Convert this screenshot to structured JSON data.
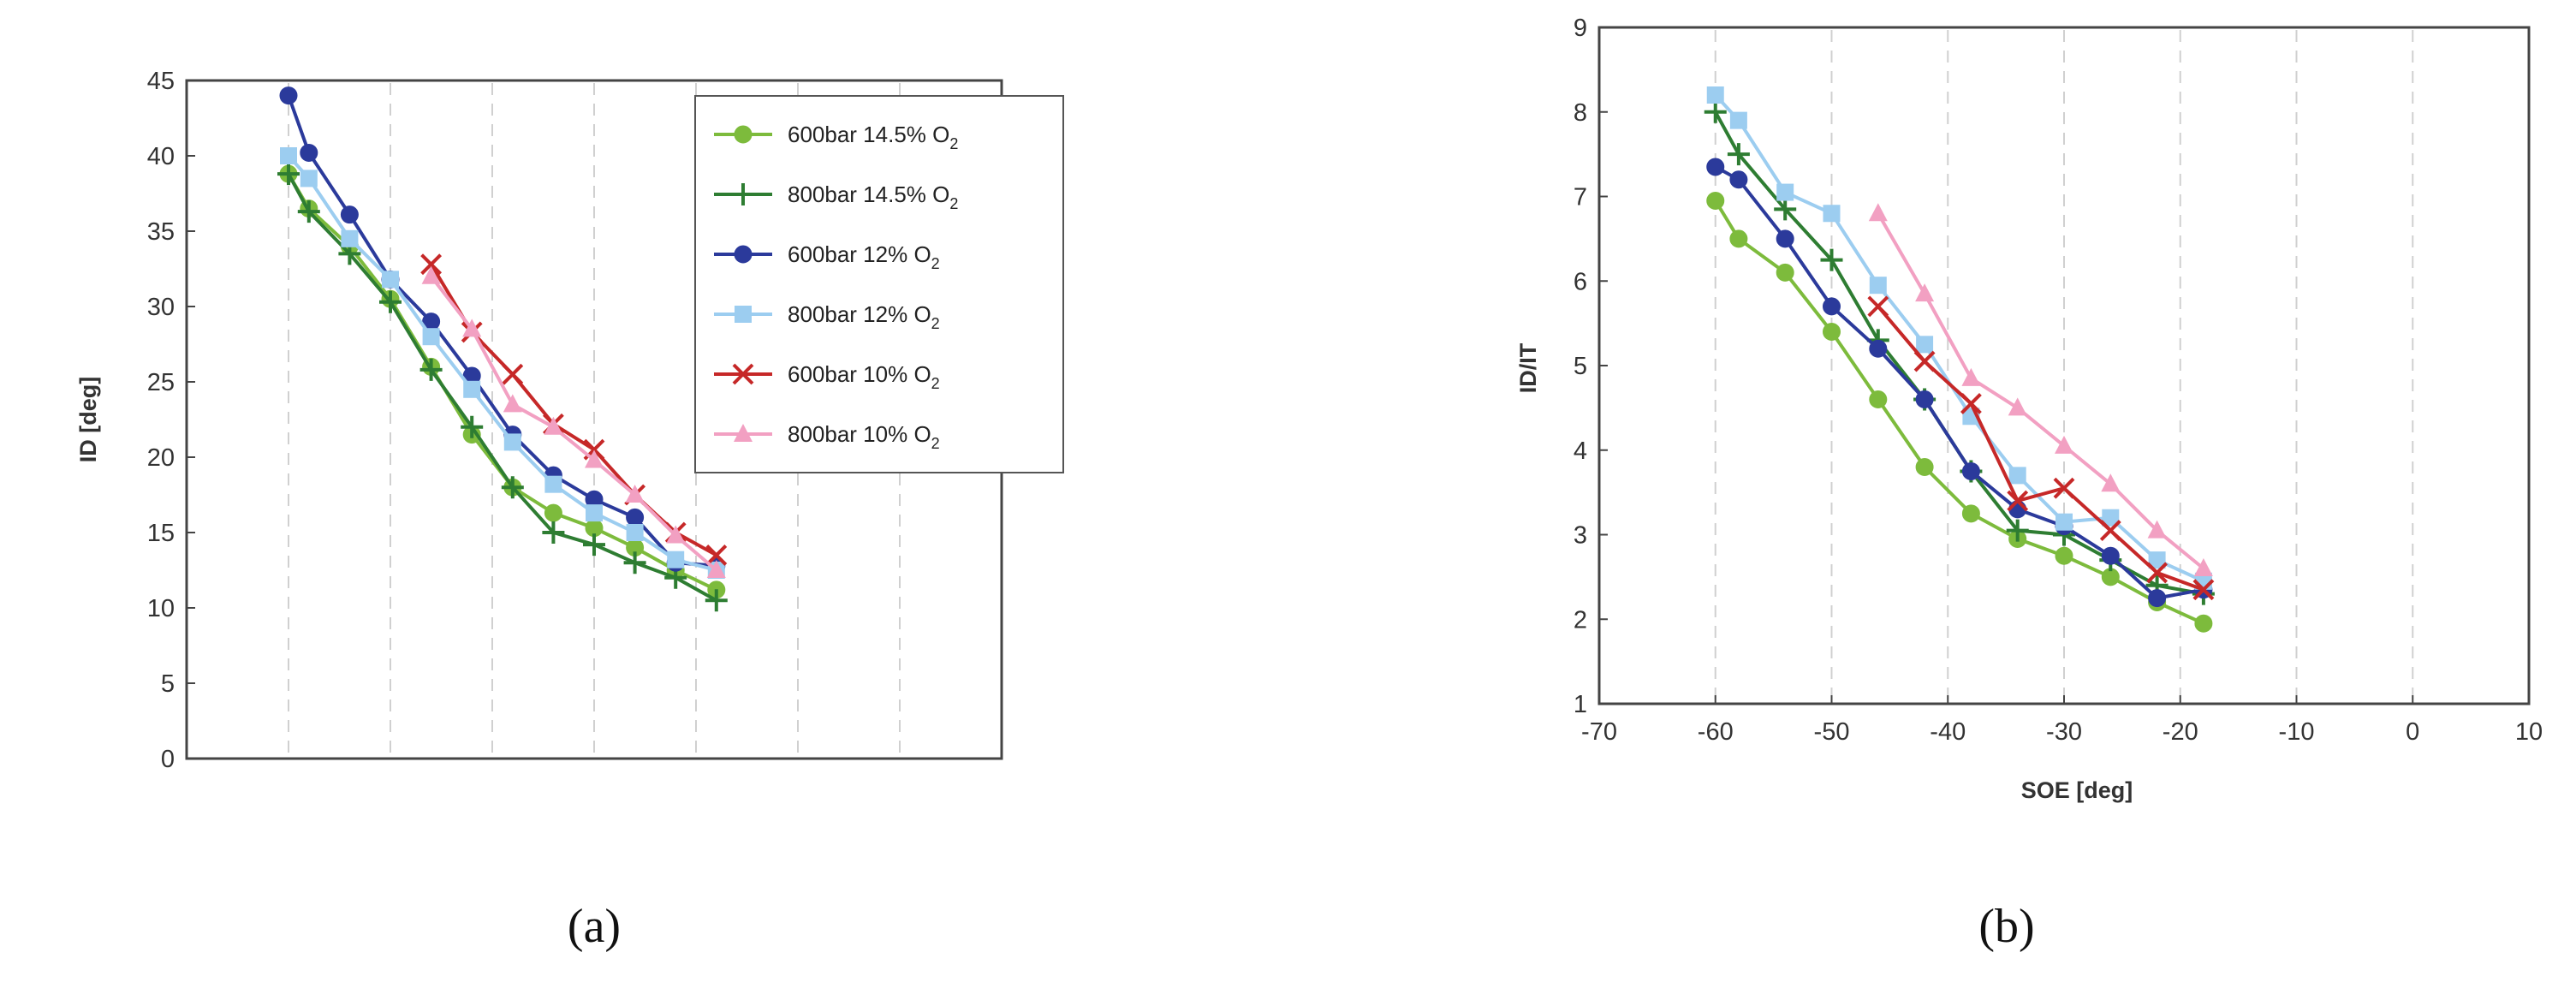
{
  "chart_data": [
    {
      "type": "line",
      "caption": "(a)",
      "ylabel": "ID [deg]",
      "xlabel": "",
      "xlim": [
        -70,
        10
      ],
      "ylim": [
        0,
        45
      ],
      "yticks": [
        "0",
        "5",
        "10",
        "15",
        "20",
        "25",
        "30",
        "35",
        "40",
        "45"
      ],
      "grid": "vertical-dashed",
      "legend_position": "top-right",
      "series": [
        {
          "name": "600bar 14.5% O",
          "name_sub": "2",
          "color": "#7dbb3c",
          "marker": "circle",
          "x": [
            -60,
            -58,
            -54,
            -50,
            -46,
            -42,
            -38,
            -34,
            -30,
            -26,
            -22,
            -18
          ],
          "y": [
            38.8,
            36.5,
            34.0,
            30.5,
            26.0,
            21.5,
            18.0,
            16.3,
            15.3,
            14.0,
            12.5,
            11.2
          ]
        },
        {
          "name": "800bar 14.5% O",
          "name_sub": "2",
          "color": "#2e7d32",
          "marker": "plus",
          "x": [
            -60,
            -58,
            -54,
            -50,
            -46,
            -42,
            -38,
            -34,
            -30,
            -26,
            -22,
            -18
          ],
          "y": [
            38.8,
            36.3,
            33.5,
            30.3,
            25.8,
            22.0,
            18.0,
            15.0,
            14.2,
            13.0,
            12.0,
            10.5
          ]
        },
        {
          "name": "600bar 12% O",
          "name_sub": "2",
          "color": "#2b3a9b",
          "marker": "circle",
          "x": [
            -60,
            -58,
            -54,
            -50,
            -46,
            -42,
            -38,
            -34,
            -30,
            -26,
            -22,
            -18
          ],
          "y": [
            44.0,
            40.2,
            36.1,
            31.8,
            29.0,
            25.4,
            21.5,
            18.8,
            17.2,
            16.0,
            13.0,
            12.8
          ]
        },
        {
          "name": "800bar 12% O",
          "name_sub": "2",
          "color": "#9ccdf0",
          "marker": "square",
          "x": [
            -60,
            -58,
            -54,
            -50,
            -46,
            -42,
            -38,
            -34,
            -30,
            -26,
            -22,
            -18
          ],
          "y": [
            40.0,
            38.5,
            34.5,
            31.8,
            28.0,
            24.5,
            21.0,
            18.2,
            16.3,
            15.0,
            13.2,
            12.5
          ]
        },
        {
          "name": "600bar 10% O",
          "name_sub": "2",
          "color": "#c62828",
          "marker": "x",
          "x": [
            -46,
            -42,
            -38,
            -34,
            -30,
            -26,
            -22,
            -18
          ],
          "y": [
            32.8,
            28.3,
            25.5,
            22.2,
            20.5,
            17.5,
            15.0,
            13.5
          ]
        },
        {
          "name": "800bar 10% O",
          "name_sub": "2",
          "color": "#f2a0c2",
          "marker": "triangle",
          "x": [
            -46,
            -42,
            -38,
            -34,
            -30,
            -26,
            -22,
            -18
          ],
          "y": [
            32.0,
            28.5,
            23.5,
            22.0,
            19.8,
            17.5,
            14.8,
            12.5
          ]
        }
      ]
    },
    {
      "type": "line",
      "caption": "(b)",
      "ylabel": "ID/IT",
      "xlabel": "SOE [deg]",
      "xlim": [
        -70,
        10
      ],
      "ylim": [
        1,
        9
      ],
      "xticks": [
        "-70",
        "-60",
        "-50",
        "-40",
        "-30",
        "-20",
        "-10",
        "0",
        "10"
      ],
      "yticks": [
        "1",
        "2",
        "3",
        "4",
        "5",
        "6",
        "7",
        "8",
        "9"
      ],
      "grid": "vertical-dashed",
      "series": [
        {
          "color": "#7dbb3c",
          "marker": "circle",
          "x": [
            -60,
            -58,
            -54,
            -50,
            -46,
            -42,
            -38,
            -34,
            -30,
            -26,
            -22,
            -18
          ],
          "y": [
            6.95,
            6.5,
            6.1,
            5.4,
            4.6,
            3.8,
            3.25,
            2.95,
            2.75,
            2.5,
            2.2,
            1.95
          ]
        },
        {
          "color": "#2e7d32",
          "marker": "plus",
          "x": [
            -60,
            -58,
            -54,
            -50,
            -46,
            -42,
            -38,
            -34,
            -30,
            -26,
            -22,
            -18
          ],
          "y": [
            8.0,
            7.5,
            6.85,
            6.25,
            5.3,
            4.6,
            3.75,
            3.05,
            3.0,
            2.7,
            2.4,
            2.3
          ]
        },
        {
          "color": "#2b3a9b",
          "marker": "circle",
          "x": [
            -60,
            -58,
            -54,
            -50,
            -46,
            -42,
            -38,
            -34,
            -30,
            -26,
            -22,
            -18
          ],
          "y": [
            7.35,
            7.2,
            6.5,
            5.7,
            5.2,
            4.6,
            3.75,
            3.3,
            3.1,
            2.75,
            2.25,
            2.35
          ]
        },
        {
          "color": "#9ccdf0",
          "marker": "square",
          "x": [
            -60,
            -58,
            -54,
            -50,
            -46,
            -42,
            -38,
            -34,
            -30,
            -26,
            -22,
            -18
          ],
          "y": [
            8.2,
            7.9,
            7.05,
            6.8,
            5.95,
            5.25,
            4.4,
            3.7,
            3.15,
            3.2,
            2.7,
            2.45
          ]
        },
        {
          "color": "#c62828",
          "marker": "x",
          "x": [
            -46,
            -42,
            -38,
            -34,
            -30,
            -26,
            -22,
            -18
          ],
          "y": [
            5.7,
            5.05,
            4.55,
            3.4,
            3.55,
            3.05,
            2.55,
            2.35
          ]
        },
        {
          "color": "#f2a0c2",
          "marker": "triangle",
          "x": [
            -46,
            -42,
            -38,
            -34,
            -30,
            -26,
            -22,
            -18
          ],
          "y": [
            6.8,
            5.85,
            4.85,
            4.5,
            4.05,
            3.6,
            3.05,
            2.6
          ]
        }
      ]
    }
  ]
}
